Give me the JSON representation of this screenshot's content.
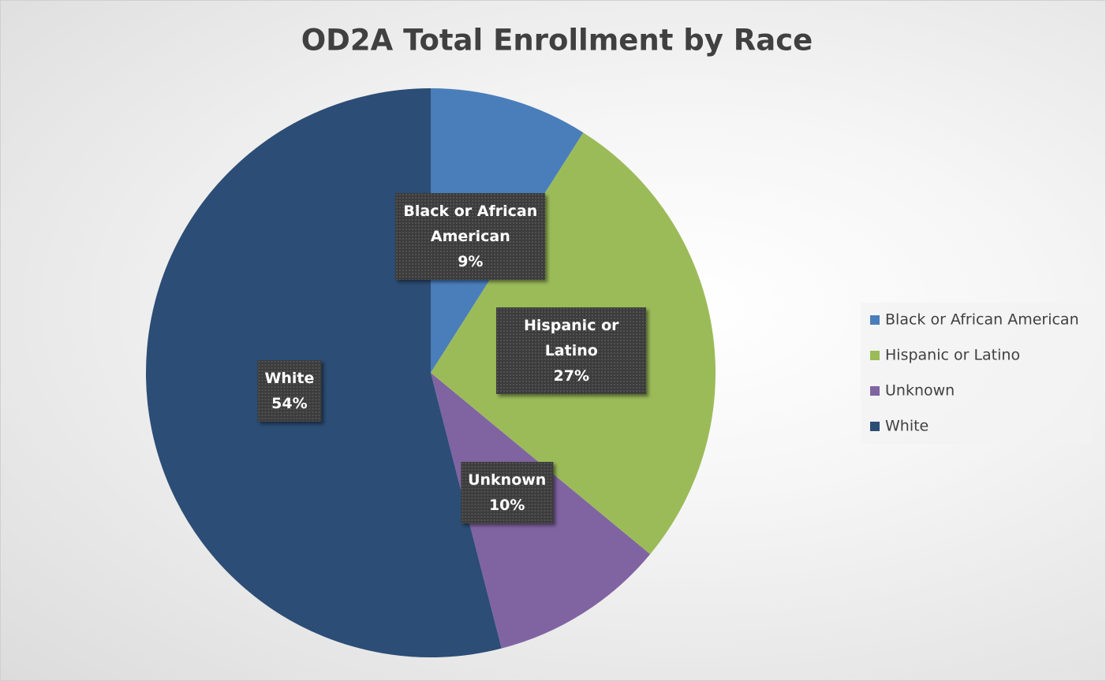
{
  "chart_data": {
    "type": "pie",
    "title": "OD2A Total Enrollment by Race",
    "categories": [
      "Black or African American",
      "Hispanic or Latino",
      "Unknown",
      "White"
    ],
    "values": [
      9,
      27,
      10,
      54
    ],
    "value_labels": [
      "9%",
      "27%",
      "10%",
      "54%"
    ],
    "colors": [
      "#4a7ebb",
      "#9bbb59",
      "#8064a2",
      "#2c4d75"
    ],
    "legend": "right"
  }
}
